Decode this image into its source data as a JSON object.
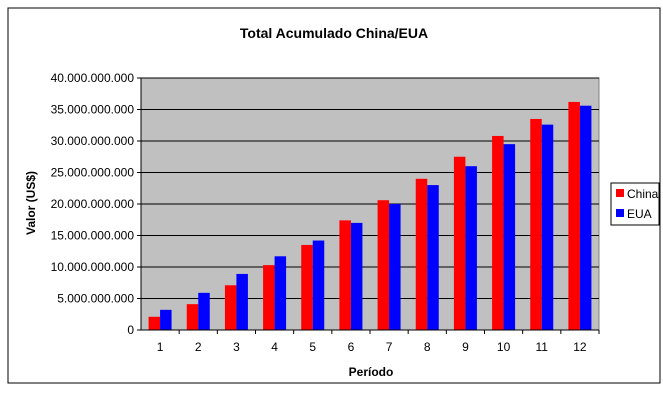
{
  "chart_data": {
    "type": "bar",
    "title": "Total Acumulado China/EUA",
    "xlabel": "Período",
    "ylabel": "Valor (US$)",
    "categories": [
      "1",
      "2",
      "3",
      "4",
      "5",
      "6",
      "7",
      "8",
      "9",
      "10",
      "11",
      "12"
    ],
    "ylim": [
      0,
      40000000000
    ],
    "yticks": [
      "0",
      "5.000.000.000",
      "10.000.000.000",
      "15.000.000.000",
      "20.000.000.000",
      "25.000.000.000",
      "30.000.000.000",
      "35.000.000.000",
      "40.000.000.000"
    ],
    "grid": true,
    "legend_position": "right",
    "series": [
      {
        "name": "China",
        "color": "#ff0000",
        "values": [
          2100000000,
          4100000000,
          7100000000,
          10300000000,
          13500000000,
          17400000000,
          20600000000,
          24000000000,
          27500000000,
          30800000000,
          33500000000,
          36200000000
        ]
      },
      {
        "name": "EUA",
        "color": "#0000ff",
        "values": [
          3200000000,
          5900000000,
          8900000000,
          11700000000,
          14200000000,
          17000000000,
          20000000000,
          23000000000,
          26000000000,
          29500000000,
          32600000000,
          35600000000
        ]
      }
    ],
    "plot_background": "#c0c0c0"
  }
}
